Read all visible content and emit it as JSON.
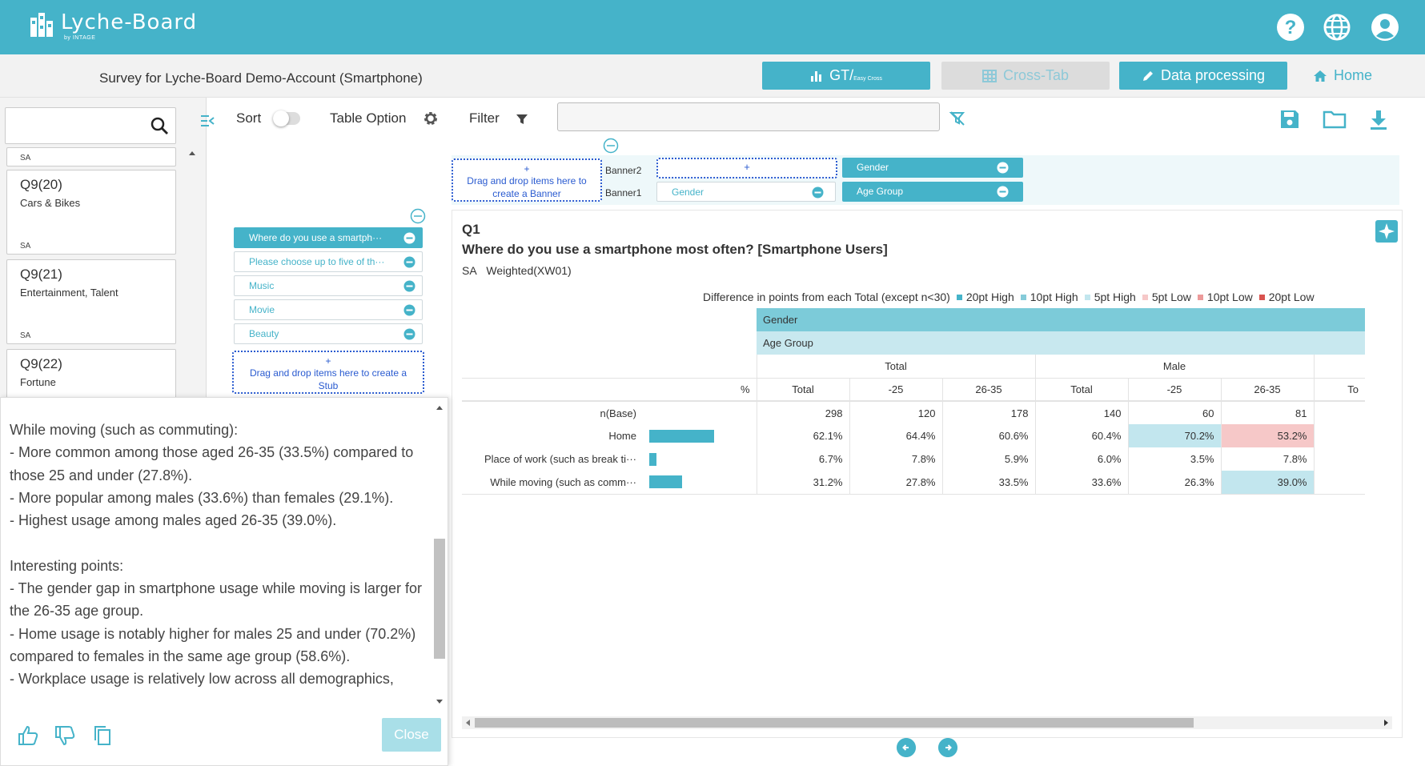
{
  "header": {
    "brand": "Lyche-Board",
    "brand_sub": "by INTAGE",
    "icons": [
      "help-icon",
      "globe-icon",
      "user-icon"
    ]
  },
  "subheader": {
    "survey_title": "Survey for Lyche-Board Demo-Account (Smartphone)",
    "nav": {
      "gt": "GT/",
      "gt_sub": "Easy Cross",
      "crosstab": "Cross-Tab",
      "data_processing": "Data processing",
      "home": "Home"
    }
  },
  "sidebar": {
    "search_placeholder": "",
    "top_type": "SA",
    "questions": [
      {
        "num": "Q9(20)",
        "name": "Cars & Bikes",
        "type": "SA"
      },
      {
        "num": "Q9(21)",
        "name": "Entertainment, Talent",
        "type": "SA"
      },
      {
        "num": "Q9(22)",
        "name": "Fortune",
        "type": ""
      }
    ]
  },
  "toolbar": {
    "sort": "Sort",
    "table_option": "Table Option",
    "filter": "Filter",
    "filter_value": ""
  },
  "stub": {
    "items": [
      "Where do you use a smartph···",
      "Please choose up to five of th···",
      "Music",
      "Movie",
      "Beauty"
    ],
    "drop_plus": "+",
    "drop_text": "Drag and drop items here to create a Stub"
  },
  "banner": {
    "drop_plus": "+",
    "drop_text": "Drag and drop items here to create a Banner",
    "banner2_label": "Banner2",
    "banner1_label": "Banner1",
    "banner2_plus": "+",
    "banner1_white": "Gender",
    "banner2_solid": "Gender",
    "banner1_solid": "Age Group"
  },
  "table": {
    "q_id": "Q1",
    "q_title": "Where do you use a smartphone most often? [Smartphone Users]",
    "q_type": "SA",
    "q_weight": "Weighted(XW01)",
    "legend_intro": "Difference in points from each Total (except n<30)",
    "legend": [
      {
        "label": "20pt High",
        "color": "#45b3c9"
      },
      {
        "label": "10pt High",
        "color": "#85cbd9"
      },
      {
        "label": "5pt High",
        "color": "#c2e6ee"
      },
      {
        "label": "5pt Low",
        "color": "#f6c8c8"
      },
      {
        "label": "10pt Low",
        "color": "#ec9a9a"
      },
      {
        "label": "20pt Low",
        "color": "#d9534f"
      }
    ],
    "hdr_gender": "Gender",
    "hdr_age": "Age Group",
    "group_total": "Total",
    "group_male": "Male",
    "pct_label": "%",
    "cols": [
      "Total",
      "-25",
      "26-35",
      "Total",
      "-25",
      "26-35",
      "To"
    ],
    "rows": [
      {
        "label": "n(Base)",
        "bar": null,
        "cells": [
          "298",
          "120",
          "178",
          "140",
          "60",
          "81"
        ],
        "hl": [
          "",
          "",
          "",
          "",
          "",
          ""
        ]
      },
      {
        "label": "Home",
        "bar": 62.1,
        "cells": [
          "62.1%",
          "64.4%",
          "60.6%",
          "60.4%",
          "70.2%",
          "53.2%"
        ],
        "hl": [
          "",
          "",
          "",
          "",
          "hi",
          "lo"
        ]
      },
      {
        "label": "Place of work (such as break ti···",
        "bar": 6.7,
        "cells": [
          "6.7%",
          "7.8%",
          "5.9%",
          "6.0%",
          "3.5%",
          "7.8%"
        ],
        "hl": [
          "",
          "",
          "",
          "",
          "",
          ""
        ]
      },
      {
        "label": "While moving (such as comm···",
        "bar": 31.2,
        "cells": [
          "31.2%",
          "27.8%",
          "33.5%",
          "33.6%",
          "26.3%",
          "39.0%"
        ],
        "hl": [
          "",
          "",
          "",
          "",
          "",
          "hi"
        ]
      }
    ]
  },
  "popup": {
    "text": "While moving (such as commuting):\n- More common among those aged 26-35 (33.5%) compared to those 25 and under (27.8%).\n- More popular among males (33.6%) than females (29.1%).\n- Highest usage among males aged 26-35 (39.0%).\n\nInteresting points:\n- The gender gap in smartphone usage while moving is larger for the 26-35 age group.\n- Home usage is notably higher for males 25 and under (70.2%) compared to females in the same age group (58.6%).\n- Workplace usage is relatively low across all demographics,",
    "close": "Close"
  },
  "colors": {
    "accent": "#45b3c9",
    "high": "#c2e6ee",
    "low": "#f6c8c8"
  }
}
